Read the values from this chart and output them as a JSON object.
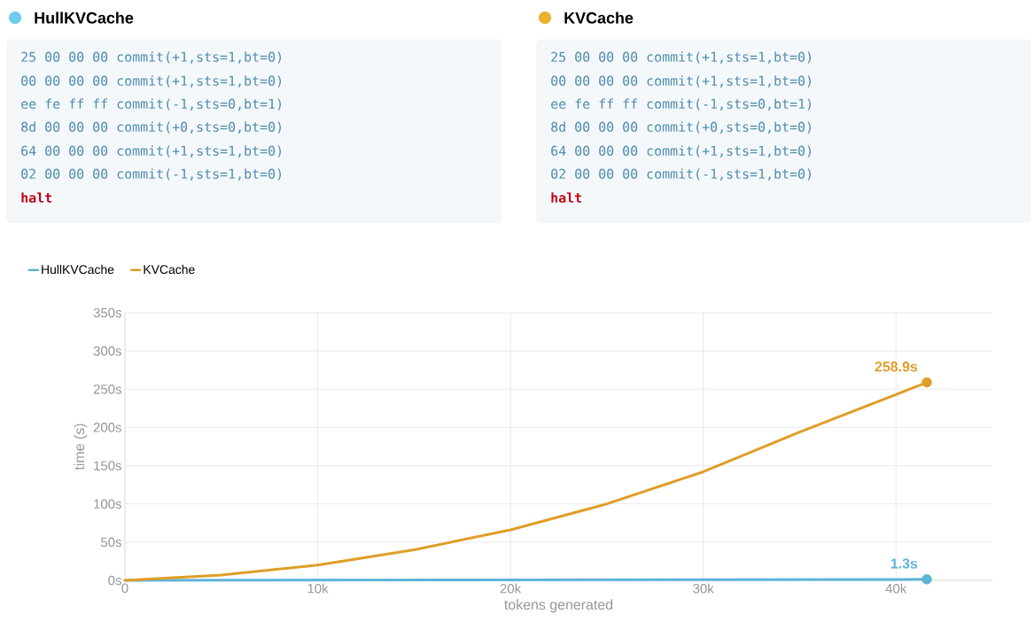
{
  "chart_data": [
    {
      "type": "other",
      "title": "HullKVCache",
      "color": "#6ccbef",
      "annotations": [
        "25 00 00 00 commit(+1,sts=1,bt=0)",
        "00 00 00 00 commit(+1,sts=1,bt=0)",
        "ee fe ff ff commit(-1,sts=0,bt=1)",
        "8d 00 00 00 commit(+0,sts=0,bt=0)",
        "64 00 00 00 commit(+1,sts=1,bt=0)",
        "02 00 00 00 commit(-1,sts=1,bt=0)",
        "halt"
      ]
    },
    {
      "type": "other",
      "title": "KVCache",
      "color": "#ebb02e",
      "annotations": [
        "25 00 00 00 commit(+1,sts=1,bt=0)",
        "00 00 00 00 commit(+1,sts=1,bt=0)",
        "ee fe ff ff commit(-1,sts=0,bt=1)",
        "8d 00 00 00 commit(+0,sts=0,bt=0)",
        "64 00 00 00 commit(+1,sts=1,bt=0)",
        "02 00 00 00 commit(-1,sts=1,bt=0)",
        "halt"
      ]
    },
    {
      "type": "line",
      "xlabel": "tokens generated",
      "ylabel": "time (s)",
      "legend": "top left",
      "grid": true,
      "xlim": [
        0,
        45000
      ],
      "ylim": [
        0,
        350
      ],
      "xticks": [
        0,
        {
          "value": 10000,
          "label": "10k"
        },
        {
          "value": 20000,
          "label": "20k"
        },
        {
          "value": 30000,
          "label": "30k"
        },
        {
          "value": 40000,
          "label": "40k"
        }
      ],
      "yticks": [
        {
          "value": 0,
          "label": "0s"
        },
        {
          "value": 50,
          "label": "50s"
        },
        {
          "value": 100,
          "label": "100s"
        },
        {
          "value": 150,
          "label": "150s"
        },
        {
          "value": 200,
          "label": "200s"
        },
        {
          "value": 250,
          "label": "250s"
        },
        {
          "value": 300,
          "label": "300s"
        },
        {
          "value": 350,
          "label": "350s"
        }
      ],
      "series": [
        {
          "name": "HullKVCache",
          "color": "#5eb3d8",
          "x": [
            0,
            41600
          ],
          "values": [
            0,
            1.3
          ],
          "value_labels": [
            null,
            "1.3s"
          ]
        },
        {
          "name": "KVCache",
          "color": "#e09e28",
          "x": [
            0,
            5000,
            10000,
            15000,
            20000,
            25000,
            30000,
            35000,
            41600
          ],
          "values": [
            0,
            7,
            20,
            40,
            66,
            100,
            142,
            194,
            258.9
          ],
          "value_labels": [
            null,
            null,
            null,
            null,
            null,
            null,
            null,
            null,
            "258.9s"
          ]
        }
      ]
    }
  ]
}
